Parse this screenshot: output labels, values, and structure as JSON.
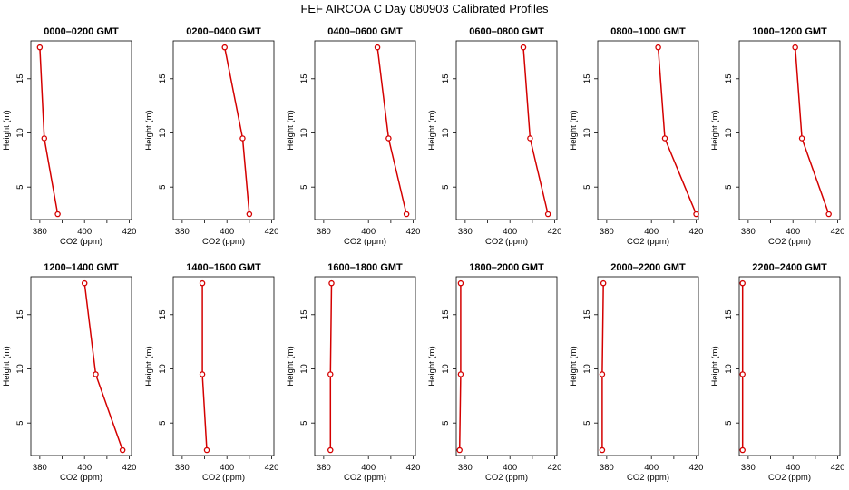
{
  "title": "FEF AIRCOA C  Day 080903  Calibrated Profiles",
  "colors": {
    "line": "#d40000",
    "axis": "#000000",
    "background": "#ffffff"
  },
  "chart_data": [
    {
      "type": "line",
      "title": "0000–0200 GMT",
      "xlabel": "CO2 (ppm)",
      "ylabel": "Height (m)",
      "xlim": [
        376,
        421
      ],
      "ylim": [
        2.0,
        18.5
      ],
      "xticks": [
        380,
        400,
        420
      ],
      "yticks": [
        5,
        10,
        15
      ],
      "x": [
        388,
        382,
        380
      ],
      "y": [
        2.5,
        9.5,
        17.9
      ]
    },
    {
      "type": "line",
      "title": "0200–0400 GMT",
      "xlabel": "CO2 (ppm)",
      "ylabel": "Height (m)",
      "xlim": [
        376,
        421
      ],
      "ylim": [
        2.0,
        18.5
      ],
      "xticks": [
        380,
        400,
        420
      ],
      "yticks": [
        5,
        10,
        15
      ],
      "x": [
        410,
        407,
        399
      ],
      "y": [
        2.5,
        9.5,
        17.9
      ]
    },
    {
      "type": "line",
      "title": "0400–0600 GMT",
      "xlabel": "CO2 (ppm)",
      "ylabel": "Height (m)",
      "xlim": [
        376,
        421
      ],
      "ylim": [
        2.0,
        18.5
      ],
      "xticks": [
        380,
        400,
        420
      ],
      "yticks": [
        5,
        10,
        15
      ],
      "x": [
        417,
        409,
        404
      ],
      "y": [
        2.5,
        9.5,
        17.9
      ]
    },
    {
      "type": "line",
      "title": "0600–0800 GMT",
      "xlabel": "CO2 (ppm)",
      "ylabel": "Height (m)",
      "xlim": [
        376,
        421
      ],
      "ylim": [
        2.0,
        18.5
      ],
      "xticks": [
        380,
        400,
        420
      ],
      "yticks": [
        5,
        10,
        15
      ],
      "x": [
        417,
        409,
        406
      ],
      "y": [
        2.5,
        9.5,
        17.9
      ]
    },
    {
      "type": "line",
      "title": "0800–1000 GMT",
      "xlabel": "CO2 (ppm)",
      "ylabel": "Height (m)",
      "xlim": [
        376,
        421
      ],
      "ylim": [
        2.0,
        18.5
      ],
      "xticks": [
        380,
        400,
        420
      ],
      "yticks": [
        5,
        10,
        15
      ],
      "x": [
        420,
        406,
        403
      ],
      "y": [
        2.5,
        9.5,
        17.9
      ]
    },
    {
      "type": "line",
      "title": "1000–1200 GMT",
      "xlabel": "CO2 (ppm)",
      "ylabel": "Height (m)",
      "xlim": [
        376,
        421
      ],
      "ylim": [
        2.0,
        18.5
      ],
      "xticks": [
        380,
        400,
        420
      ],
      "yticks": [
        5,
        10,
        15
      ],
      "x": [
        416,
        404,
        401
      ],
      "y": [
        2.5,
        9.5,
        17.9
      ]
    },
    {
      "type": "line",
      "title": "1200–1400 GMT",
      "xlabel": "CO2 (ppm)",
      "ylabel": "Height (m)",
      "xlim": [
        376,
        421
      ],
      "ylim": [
        2.0,
        18.5
      ],
      "xticks": [
        380,
        400,
        420
      ],
      "yticks": [
        5,
        10,
        15
      ],
      "x": [
        417,
        405,
        400
      ],
      "y": [
        2.5,
        9.5,
        17.9
      ]
    },
    {
      "type": "line",
      "title": "1400–1600 GMT",
      "xlabel": "CO2 (ppm)",
      "ylabel": "Height (m)",
      "xlim": [
        376,
        421
      ],
      "ylim": [
        2.0,
        18.5
      ],
      "xticks": [
        380,
        400,
        420
      ],
      "yticks": [
        5,
        10,
        15
      ],
      "x": [
        391,
        389,
        389
      ],
      "y": [
        2.5,
        9.5,
        17.9
      ]
    },
    {
      "type": "line",
      "title": "1600–1800 GMT",
      "xlabel": "CO2 (ppm)",
      "ylabel": "Height (m)",
      "xlim": [
        376,
        421
      ],
      "ylim": [
        2.0,
        18.5
      ],
      "xticks": [
        380,
        400,
        420
      ],
      "yticks": [
        5,
        10,
        15
      ],
      "x": [
        383,
        383,
        383.5
      ],
      "y": [
        2.5,
        9.5,
        17.9
      ]
    },
    {
      "type": "line",
      "title": "1800–2000 GMT",
      "xlabel": "CO2 (ppm)",
      "ylabel": "Height (m)",
      "xlim": [
        376,
        421
      ],
      "ylim": [
        2.0,
        18.5
      ],
      "xticks": [
        380,
        400,
        420
      ],
      "yticks": [
        5,
        10,
        15
      ],
      "x": [
        377.5,
        378,
        378
      ],
      "y": [
        2.5,
        9.5,
        17.9
      ]
    },
    {
      "type": "line",
      "title": "2000–2200 GMT",
      "xlabel": "CO2 (ppm)",
      "ylabel": "Height (m)",
      "xlim": [
        376,
        421
      ],
      "ylim": [
        2.0,
        18.5
      ],
      "xticks": [
        380,
        400,
        420
      ],
      "yticks": [
        5,
        10,
        15
      ],
      "x": [
        378,
        378,
        378.5
      ],
      "y": [
        2.5,
        9.5,
        17.9
      ]
    },
    {
      "type": "line",
      "title": "2200–2400 GMT",
      "xlabel": "CO2 (ppm)",
      "ylabel": "Height (m)",
      "xlim": [
        376,
        421
      ],
      "ylim": [
        2.0,
        18.5
      ],
      "xticks": [
        380,
        400,
        420
      ],
      "yticks": [
        5,
        10,
        15
      ],
      "x": [
        377.5,
        377.5,
        377.5
      ],
      "y": [
        2.5,
        9.5,
        17.9
      ]
    }
  ]
}
